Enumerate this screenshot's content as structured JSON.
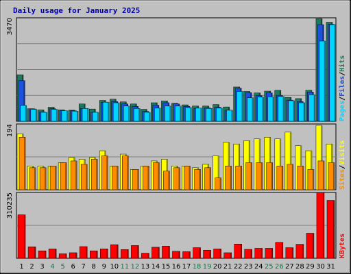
{
  "title": "Daily usage for January 2025",
  "colors": {
    "background": "#c0c0c0",
    "hits": "#1e7a5e",
    "files": "#1e50e0",
    "pages": "#00d4ff",
    "visits": "#ffff00",
    "sites": "#ff8c00",
    "kbytes": "#ff0000",
    "title": "#0000aa",
    "weekend": "#008040",
    "weekday": "#000000"
  },
  "chart_data": [
    {
      "type": "bar",
      "panel": "hits_files_pages",
      "categories": [
        "1",
        "2",
        "3",
        "4",
        "5",
        "6",
        "7",
        "8",
        "9",
        "10",
        "11",
        "12",
        "13",
        "14",
        "15",
        "16",
        "17",
        "18",
        "19",
        "20",
        "21",
        "22",
        "23",
        "24",
        "25",
        "26",
        "27",
        "28",
        "29",
        "30",
        "31"
      ],
      "weekend_days": [
        "4",
        "5",
        "11",
        "12",
        "18",
        "19",
        "25",
        "26"
      ],
      "y_label": "3470",
      "ylim": [
        0,
        3470
      ],
      "series": [
        {
          "name": "Hits",
          "values": [
            1560,
            420,
            380,
            470,
            380,
            370,
            580,
            410,
            700,
            740,
            650,
            580,
            400,
            620,
            680,
            600,
            550,
            510,
            510,
            560,
            480,
            1150,
            1000,
            950,
            1010,
            1040,
            800,
            760,
            1040,
            3440,
            3320
          ]
        },
        {
          "name": "Files",
          "values": [
            1360,
            420,
            310,
            420,
            350,
            350,
            430,
            300,
            640,
            660,
            580,
            500,
            330,
            540,
            620,
            580,
            500,
            430,
            450,
            470,
            370,
            1110,
            960,
            860,
            950,
            870,
            710,
            660,
            980,
            3240,
            3250
          ]
        },
        {
          "name": "Pages",
          "values": [
            530,
            400,
            300,
            400,
            350,
            340,
            430,
            300,
            640,
            620,
            510,
            430,
            300,
            440,
            510,
            510,
            460,
            440,
            430,
            440,
            370,
            1000,
            790,
            810,
            820,
            830,
            690,
            620,
            890,
            2690,
            3240
          ]
        }
      ]
    },
    {
      "type": "bar",
      "panel": "visits_sites",
      "categories": [
        "1",
        "2",
        "3",
        "4",
        "5",
        "6",
        "7",
        "8",
        "9",
        "10",
        "11",
        "12",
        "13",
        "14",
        "15",
        "16",
        "17",
        "18",
        "19",
        "20",
        "21",
        "22",
        "23",
        "24",
        "25",
        "26",
        "27",
        "28",
        "29",
        "30",
        "31"
      ],
      "y_label": "194",
      "ylim": [
        0,
        194
      ],
      "series": [
        {
          "name": "Visits",
          "values": [
            165,
            70,
            70,
            70,
            80,
            95,
            90,
            95,
            115,
            70,
            105,
            60,
            70,
            85,
            90,
            70,
            70,
            65,
            75,
            100,
            140,
            135,
            145,
            150,
            155,
            150,
            170,
            130,
            115,
            190,
            135
          ]
        },
        {
          "name": "Sites",
          "values": [
            155,
            65,
            65,
            70,
            80,
            85,
            75,
            90,
            100,
            70,
            100,
            60,
            70,
            80,
            55,
            65,
            70,
            60,
            65,
            35,
            70,
            70,
            80,
            80,
            80,
            70,
            75,
            70,
            60,
            85,
            80
          ]
        }
      ]
    },
    {
      "type": "bar",
      "panel": "kbytes",
      "categories": [
        "1",
        "2",
        "3",
        "4",
        "5",
        "6",
        "7",
        "8",
        "9",
        "10",
        "11",
        "12",
        "13",
        "14",
        "15",
        "16",
        "17",
        "18",
        "19",
        "20",
        "21",
        "22",
        "23",
        "24",
        "25",
        "26",
        "27",
        "28",
        "29",
        "30",
        "31"
      ],
      "y_label": "310235",
      "ylim": [
        0,
        310235
      ],
      "series": [
        {
          "name": "KBytes",
          "values": [
            205000,
            54000,
            35000,
            44000,
            21000,
            26000,
            55000,
            35000,
            44000,
            64000,
            41000,
            60000,
            24000,
            52000,
            57000,
            33000,
            31000,
            50000,
            38000,
            44000,
            26000,
            67000,
            42000,
            47000,
            47000,
            75000,
            50000,
            66000,
            118000,
            310235,
            273000
          ]
        }
      ]
    }
  ],
  "legends": {
    "panel1": [
      {
        "text": "Pages",
        "color": "#00d4ff"
      },
      {
        "text": "/",
        "color": "#000000"
      },
      {
        "text": "Files",
        "color": "#1e50e0"
      },
      {
        "text": "/",
        "color": "#000000"
      },
      {
        "text": "Hits",
        "color": "#1e7a5e"
      }
    ],
    "panel2": [
      {
        "text": "Sites",
        "color": "#ff8c00"
      },
      {
        "text": "/",
        "color": "#000000"
      },
      {
        "text": "Visits",
        "color": "#ffff00"
      }
    ],
    "panel3": [
      {
        "text": "KBytes",
        "color": "#ff0000"
      }
    ]
  }
}
